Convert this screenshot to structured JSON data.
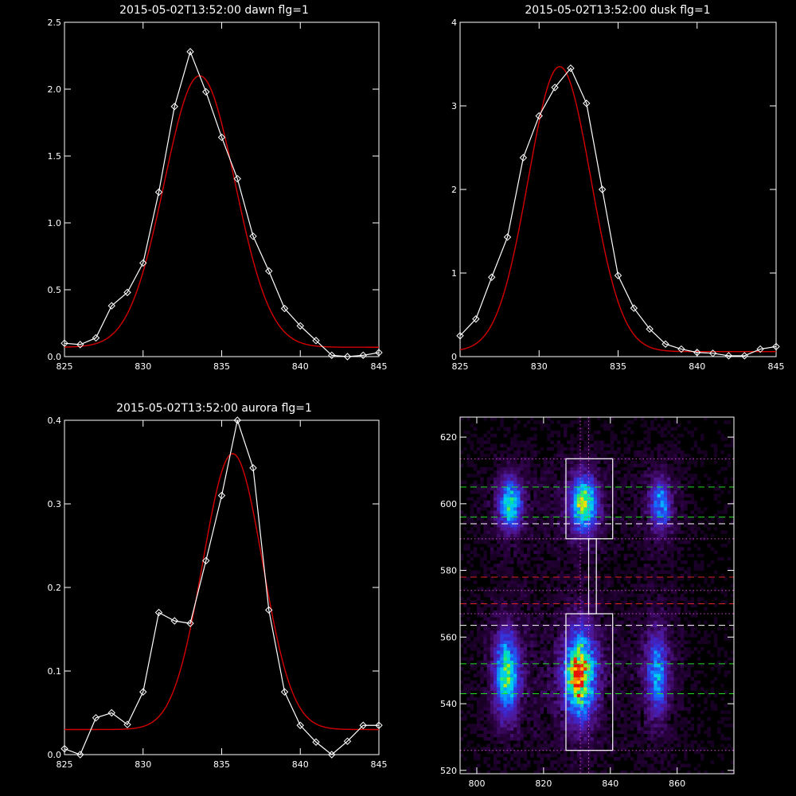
{
  "colors": {
    "background": "#000000",
    "axes": "#ffffff",
    "data_line": "#ffffff",
    "fit_line": "#d40000",
    "guide_green": "#22dd22",
    "guide_red": "#dd2222",
    "guide_magenta": "#cc44cc",
    "guide_white": "#ffffff"
  },
  "chart_data": [
    {
      "id": "dawn",
      "type": "line",
      "title": "2015-05-02T13:52:00 dawn flg=1",
      "xlabel": "",
      "ylabel": "",
      "xlim": [
        825,
        845
      ],
      "ylim": [
        0,
        2.5
      ],
      "xticks": [
        825,
        830,
        835,
        840,
        845
      ],
      "xtick_labels": [
        "825",
        "830",
        "835",
        "840",
        "845"
      ],
      "yticks": [
        0,
        0.5,
        1.0,
        1.5,
        2.0,
        2.5
      ],
      "ytick_labels": [
        "0.0",
        "0.5",
        "1.0",
        "1.5",
        "2.0",
        "2.5"
      ],
      "grid": false,
      "series": [
        {
          "style": "data-diamonds",
          "x": [
            825,
            826,
            827,
            828,
            829,
            830,
            831,
            832,
            833,
            834,
            835,
            836,
            837,
            838,
            839,
            840,
            841,
            842,
            843,
            844,
            845
          ],
          "values": [
            0.1,
            0.09,
            0.14,
            0.38,
            0.48,
            0.7,
            1.23,
            1.87,
            2.28,
            1.98,
            1.64,
            1.33,
            0.9,
            0.64,
            0.36,
            0.23,
            0.12,
            0.01,
            0.0,
            0.01,
            0.03
          ]
        },
        {
          "style": "gaussian-fit",
          "amplitude": 2.03,
          "center": 833.6,
          "sigma": 2.25,
          "baseline": 0.07
        }
      ]
    },
    {
      "id": "dusk",
      "type": "line",
      "title": "2015-05-02T13:52:00 dusk flg=1",
      "xlabel": "",
      "ylabel": "",
      "xlim": [
        825,
        845
      ],
      "ylim": [
        0,
        4
      ],
      "xticks": [
        825,
        830,
        835,
        840,
        845
      ],
      "xtick_labels": [
        "825",
        "830",
        "835",
        "840",
        "845"
      ],
      "yticks": [
        0,
        1,
        2,
        3,
        4
      ],
      "ytick_labels": [
        "0",
        "1",
        "2",
        "3",
        "4"
      ],
      "grid": false,
      "series": [
        {
          "style": "data-diamonds",
          "x": [
            825,
            826,
            827,
            828,
            829,
            830,
            831,
            832,
            833,
            834,
            835,
            836,
            837,
            838,
            839,
            840,
            841,
            842,
            843,
            844,
            845
          ],
          "values": [
            0.25,
            0.45,
            0.95,
            1.43,
            2.38,
            2.88,
            3.22,
            3.45,
            3.03,
            2.0,
            0.97,
            0.58,
            0.33,
            0.15,
            0.09,
            0.05,
            0.04,
            0.01,
            0.01,
            0.09,
            0.12
          ]
        },
        {
          "style": "gaussian-fit",
          "amplitude": 3.41,
          "center": 831.3,
          "sigma": 1.98,
          "baseline": 0.06
        }
      ]
    },
    {
      "id": "aurora",
      "type": "line",
      "title": "2015-05-02T13:52:00 aurora flg=1",
      "xlabel": "",
      "ylabel": "",
      "xlim": [
        825,
        845
      ],
      "ylim": [
        0,
        0.4
      ],
      "xticks": [
        825,
        830,
        835,
        840,
        845
      ],
      "xtick_labels": [
        "825",
        "830",
        "835",
        "840",
        "845"
      ],
      "yticks": [
        0,
        0.1,
        0.2,
        0.3,
        0.4
      ],
      "ytick_labels": [
        "0.0",
        "0.1",
        "0.2",
        "0.3",
        "0.4"
      ],
      "grid": false,
      "series": [
        {
          "style": "data-diamonds",
          "x": [
            825,
            826,
            827,
            828,
            829,
            830,
            831,
            832,
            833,
            834,
            835,
            836,
            837,
            838,
            839,
            840,
            841,
            842,
            843,
            844,
            845
          ],
          "values": [
            0.007,
            0.0,
            0.044,
            0.05,
            0.036,
            0.075,
            0.17,
            0.16,
            0.157,
            0.232,
            0.31,
            0.4,
            0.343,
            0.173,
            0.075,
            0.035,
            0.015,
            0.0,
            0.016,
            0.035,
            0.035
          ]
        },
        {
          "style": "gaussian-fit",
          "amplitude": 0.33,
          "center": 835.7,
          "sigma": 1.9,
          "baseline": 0.03
        }
      ]
    },
    {
      "id": "image",
      "type": "heatmap",
      "title": "",
      "xlabel": "",
      "ylabel": "",
      "xlim": [
        795,
        877
      ],
      "ylim": [
        519,
        626
      ],
      "xticks": [
        800,
        820,
        840,
        860
      ],
      "xtick_labels": [
        "800",
        "820",
        "840",
        "860"
      ],
      "yticks": [
        520,
        540,
        560,
        580,
        600,
        620
      ],
      "ytick_labels": [
        "520",
        "540",
        "560",
        "580",
        "600",
        "620"
      ],
      "grid": false,
      "blobs": [
        {
          "x": 810,
          "y": 600,
          "sx": 2.2,
          "sy": 5,
          "amp": 0.55
        },
        {
          "x": 832,
          "y": 600,
          "sx": 2.6,
          "sy": 5.5,
          "amp": 0.68
        },
        {
          "x": 855,
          "y": 600,
          "sx": 2.0,
          "sy": 5,
          "amp": 0.4
        },
        {
          "x": 809,
          "y": 549,
          "sx": 2.3,
          "sy": 8,
          "amp": 0.62
        },
        {
          "x": 831,
          "y": 549,
          "sx": 3.0,
          "sy": 9,
          "amp": 0.72
        },
        {
          "x": 830,
          "y": 548,
          "sx": 1.6,
          "sy": 3.5,
          "amp": 0.35
        },
        {
          "x": 854,
          "y": 549,
          "sx": 2.1,
          "sy": 8,
          "amp": 0.42
        }
      ],
      "boxes": [
        {
          "x0": 826.7,
          "x1": 840.7,
          "y0": 589.5,
          "y1": 613.5
        },
        {
          "x0": 826.7,
          "x1": 840.7,
          "y0": 526.0,
          "y1": 567.0
        },
        {
          "x0": 833.5,
          "x1": 835.8,
          "y0": 567.0,
          "y1": 589.5
        }
      ],
      "hlines": [
        {
          "y": 613.5,
          "color": "magenta",
          "dash": "dot"
        },
        {
          "y": 605.0,
          "color": "green",
          "dash": "dash"
        },
        {
          "y": 596.0,
          "color": "green",
          "dash": "dash"
        },
        {
          "y": 594.0,
          "color": "white",
          "dash": "dash"
        },
        {
          "y": 589.5,
          "color": "magenta",
          "dash": "dot"
        },
        {
          "y": 578.0,
          "color": "red",
          "dash": "dash"
        },
        {
          "y": 574.0,
          "color": "magenta",
          "dash": "dot"
        },
        {
          "y": 570.0,
          "color": "red",
          "dash": "dash"
        },
        {
          "y": 567.0,
          "color": "magenta",
          "dash": "dot"
        },
        {
          "y": 563.5,
          "color": "white",
          "dash": "dash"
        },
        {
          "y": 552.0,
          "color": "green",
          "dash": "dash"
        },
        {
          "y": 543.0,
          "color": "green",
          "dash": "dash"
        },
        {
          "y": 526.0,
          "color": "magenta",
          "dash": "dot"
        }
      ],
      "vlines": [
        {
          "x": 831.0,
          "color": "magenta",
          "dash": "dot"
        },
        {
          "x": 833.5,
          "color": "magenta",
          "dash": "dot"
        }
      ]
    }
  ]
}
